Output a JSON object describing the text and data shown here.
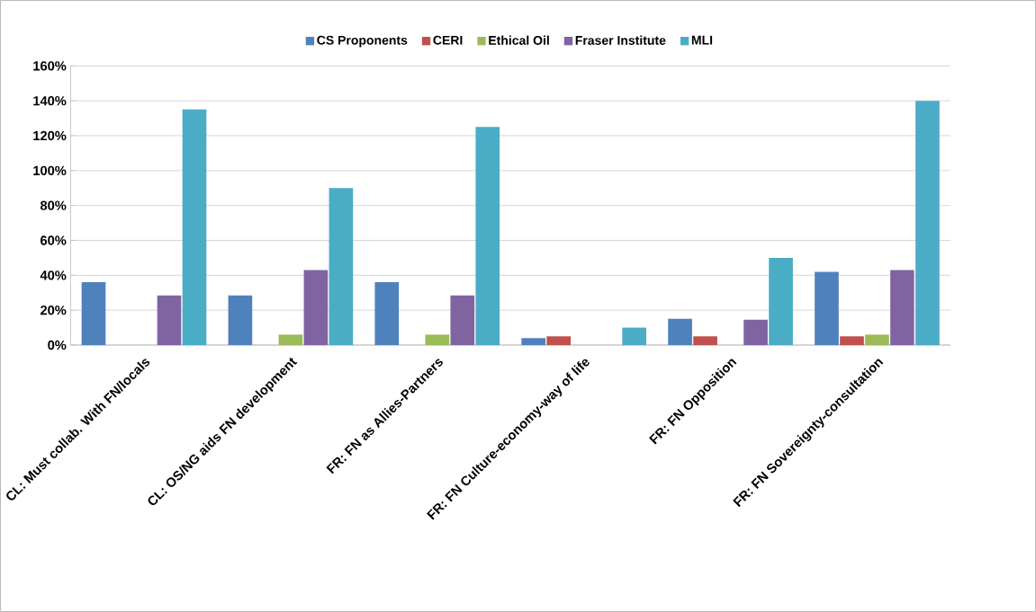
{
  "chart_data": {
    "type": "bar",
    "categories": [
      "CL: Must collab. With FN/locals",
      "CL: OS/NG aids FN development",
      "FR: FN as Allies-Partners",
      "FR: FN Culture-economy-way of life",
      "FR: FN Opposition",
      "FR: FN Sovereignty-consultation"
    ],
    "series": [
      {
        "name": "CS Proponents",
        "color": "#4f81bd",
        "values": [
          36,
          28.5,
          36,
          4,
          15,
          42
        ]
      },
      {
        "name": "CERI",
        "color": "#c0504d",
        "values": [
          0,
          0,
          0,
          5,
          5,
          5
        ]
      },
      {
        "name": "Ethical Oil",
        "color": "#9bbb59",
        "values": [
          0,
          6,
          6,
          0,
          0,
          6
        ]
      },
      {
        "name": "Fraser Institute",
        "color": "#8064a2",
        "values": [
          28.5,
          43,
          28.5,
          0,
          14.5,
          43
        ]
      },
      {
        "name": "MLI",
        "color": "#4bacc6",
        "values": [
          135,
          90,
          125,
          10,
          50,
          140
        ]
      }
    ],
    "ylim": [
      0,
      160
    ],
    "yticks": [
      {
        "value": 0,
        "label": "0%"
      },
      {
        "value": 20,
        "label": "20%"
      },
      {
        "value": 40,
        "label": "40%"
      },
      {
        "value": 60,
        "label": "60%"
      },
      {
        "value": 80,
        "label": "80%"
      },
      {
        "value": 100,
        "label": "100%"
      },
      {
        "value": 120,
        "label": "120%"
      },
      {
        "value": 140,
        "label": "140%"
      },
      {
        "value": 160,
        "label": "160%"
      }
    ],
    "grid": "y",
    "legend": "top"
  }
}
